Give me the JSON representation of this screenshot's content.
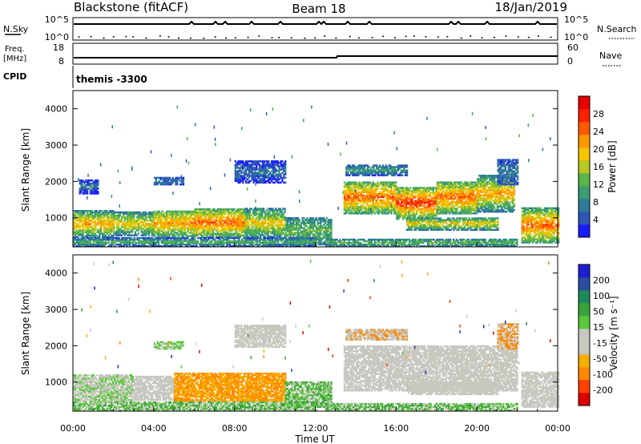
{
  "header": {
    "station": "Blackstone (fitACF)",
    "beam": "Beam 18",
    "date": "18/Jan/2019"
  },
  "strip_panels": {
    "nsky_label": "N.Sky",
    "nsky_ticks": [
      "10^5",
      "10^0"
    ],
    "nsearch_label": "N.Search",
    "nsearch_ticks": [
      "10^5",
      "10^0"
    ],
    "freq_label_1": "Freq.",
    "freq_label_2": "[MHz]",
    "freq_ticks": [
      "18",
      "8"
    ],
    "nave_label": "Nave",
    "nave_ticks": [
      "60",
      "0"
    ],
    "cpid_label": "CPID",
    "cpid_value": "themis -3300"
  },
  "colors": {
    "scale": [
      "#1a1aff",
      "#2e56b8",
      "#2e7a9a",
      "#3a9d74",
      "#5ab54a",
      "#b8c81e",
      "#f5c400",
      "#ff9800",
      "#ff5a00",
      "#ff2000",
      "#e80000"
    ],
    "velocity": [
      "#e00000",
      "#ff4000",
      "#ff8800",
      "#f4b000",
      "#c8c8c0",
      "#c8c8c0",
      "#5ac83a",
      "#3aa23a",
      "#1e8a5a",
      "#2a4ea0",
      "#1e1ed2"
    ]
  },
  "power_scale": {
    "label": "Power [dB]",
    "ticks": [
      "4",
      "8",
      "12",
      "16",
      "20",
      "24",
      "28"
    ]
  },
  "velocity_scale": {
    "label": "Velocity [m s⁻¹]",
    "ticks": [
      "-200",
      "-100",
      "-50",
      "-15",
      "15",
      "50",
      "100",
      "200"
    ]
  },
  "chart_data": [
    {
      "type": "heatmap",
      "variable": "power",
      "ylabel": "Slant Range [km]",
      "ylim": [
        200,
        4500
      ],
      "yticks": [
        "1000",
        "2000",
        "3000",
        "4000"
      ],
      "xlim": [
        0,
        24
      ],
      "bands": [
        {
          "t0": 0,
          "t1": 2,
          "r0": 450,
          "r1": 1200,
          "base": 2,
          "core": 7
        },
        {
          "t0": 2,
          "t1": 4,
          "r0": 500,
          "r1": 1150,
          "base": 2,
          "core": 6
        },
        {
          "t0": 4,
          "t1": 6,
          "r0": 480,
          "r1": 1200,
          "base": 3,
          "core": 7
        },
        {
          "t0": 6,
          "t1": 8.5,
          "r0": 450,
          "r1": 1250,
          "base": 3,
          "core": 8
        },
        {
          "t0": 8.5,
          "t1": 10.5,
          "r0": 420,
          "r1": 1250,
          "base": 2,
          "core": 6
        },
        {
          "t0": 10.5,
          "t1": 12.8,
          "r0": 250,
          "r1": 1000,
          "base": 2,
          "core": 4
        },
        {
          "t0": 0,
          "t1": 12,
          "r0": 200,
          "r1": 430,
          "base": 1,
          "core": 4
        },
        {
          "t0": 13.4,
          "t1": 16,
          "r0": 1100,
          "r1": 2000,
          "base": 3,
          "core": 8
        },
        {
          "t0": 16,
          "t1": 18,
          "r0": 950,
          "r1": 1850,
          "base": 3,
          "core": 9
        },
        {
          "t0": 18,
          "t1": 20,
          "r0": 1100,
          "r1": 2000,
          "base": 3,
          "core": 8
        },
        {
          "t0": 20,
          "t1": 21.8,
          "r0": 1150,
          "r1": 2150,
          "base": 2,
          "core": 7
        },
        {
          "t0": 16.5,
          "t1": 21,
          "r0": 650,
          "r1": 1000,
          "base": 2,
          "core": 6
        },
        {
          "t0": 13.5,
          "t1": 16.5,
          "r0": 2150,
          "r1": 2450,
          "base": 1,
          "core": 3
        },
        {
          "t0": 21,
          "t1": 22,
          "r0": 1900,
          "r1": 2600,
          "base": 1,
          "core": 2
        },
        {
          "t0": 8,
          "t1": 10.5,
          "r0": 1950,
          "r1": 2550,
          "base": 0,
          "core": 2
        },
        {
          "t0": 4,
          "t1": 5.5,
          "r0": 1900,
          "r1": 2100,
          "base": 1,
          "core": 2
        },
        {
          "t0": 0.3,
          "t1": 1.2,
          "r0": 1650,
          "r1": 2050,
          "base": 0,
          "core": 2
        },
        {
          "t0": 22.2,
          "t1": 24,
          "r0": 300,
          "r1": 1250,
          "base": 3,
          "core": 8
        },
        {
          "t0": 12.5,
          "t1": 22,
          "r0": 200,
          "r1": 400,
          "base": 2,
          "core": 4
        }
      ]
    },
    {
      "type": "heatmap",
      "variable": "velocity",
      "ylabel": "Slant Range [km]",
      "ylim": [
        200,
        4500
      ],
      "yticks": [
        "1000",
        "2000",
        "3000",
        "4000"
      ],
      "xlabel": "Time UT",
      "xlim": [
        0,
        24
      ],
      "xticks": [
        "00:00",
        "04:00",
        "08:00",
        "12:00",
        "16:00",
        "20:00",
        "00:00"
      ],
      "bands": [
        {
          "t0": 0,
          "t1": 3,
          "r0": 450,
          "r1": 1200,
          "v": [
            4,
            5,
            6
          ]
        },
        {
          "t0": 3,
          "t1": 5,
          "r0": 500,
          "r1": 1150,
          "v": [
            4,
            5
          ]
        },
        {
          "t0": 5,
          "t1": 10.5,
          "r0": 450,
          "r1": 1250,
          "v": [
            2,
            3,
            3,
            2
          ]
        },
        {
          "t0": 10.5,
          "t1": 12.8,
          "r0": 300,
          "r1": 1000,
          "v": [
            6,
            7,
            4
          ]
        },
        {
          "t0": 0,
          "t1": 12,
          "r0": 200,
          "r1": 430,
          "v": [
            6,
            7,
            5
          ]
        },
        {
          "t0": 13.4,
          "t1": 22,
          "r0": 750,
          "r1": 2000,
          "v": [
            4,
            5
          ]
        },
        {
          "t0": 16.5,
          "t1": 21,
          "r0": 650,
          "r1": 1000,
          "v": [
            4,
            5
          ]
        },
        {
          "t0": 13.5,
          "t1": 16.5,
          "r0": 2150,
          "r1": 2450,
          "v": [
            4,
            5,
            2
          ]
        },
        {
          "t0": 8,
          "t1": 10.5,
          "r0": 1950,
          "r1": 2550,
          "v": [
            4,
            5
          ]
        },
        {
          "t0": 4,
          "t1": 5.5,
          "r0": 1900,
          "r1": 2100,
          "v": [
            4,
            6
          ]
        },
        {
          "t0": 22.2,
          "t1": 24,
          "r0": 300,
          "r1": 1250,
          "v": [
            4,
            5
          ]
        },
        {
          "t0": 12.5,
          "t1": 22,
          "r0": 200,
          "r1": 400,
          "v": [
            6,
            5,
            7
          ]
        },
        {
          "t0": 21,
          "t1": 22,
          "r0": 1900,
          "r1": 2600,
          "v": [
            4,
            2
          ]
        }
      ]
    }
  ]
}
